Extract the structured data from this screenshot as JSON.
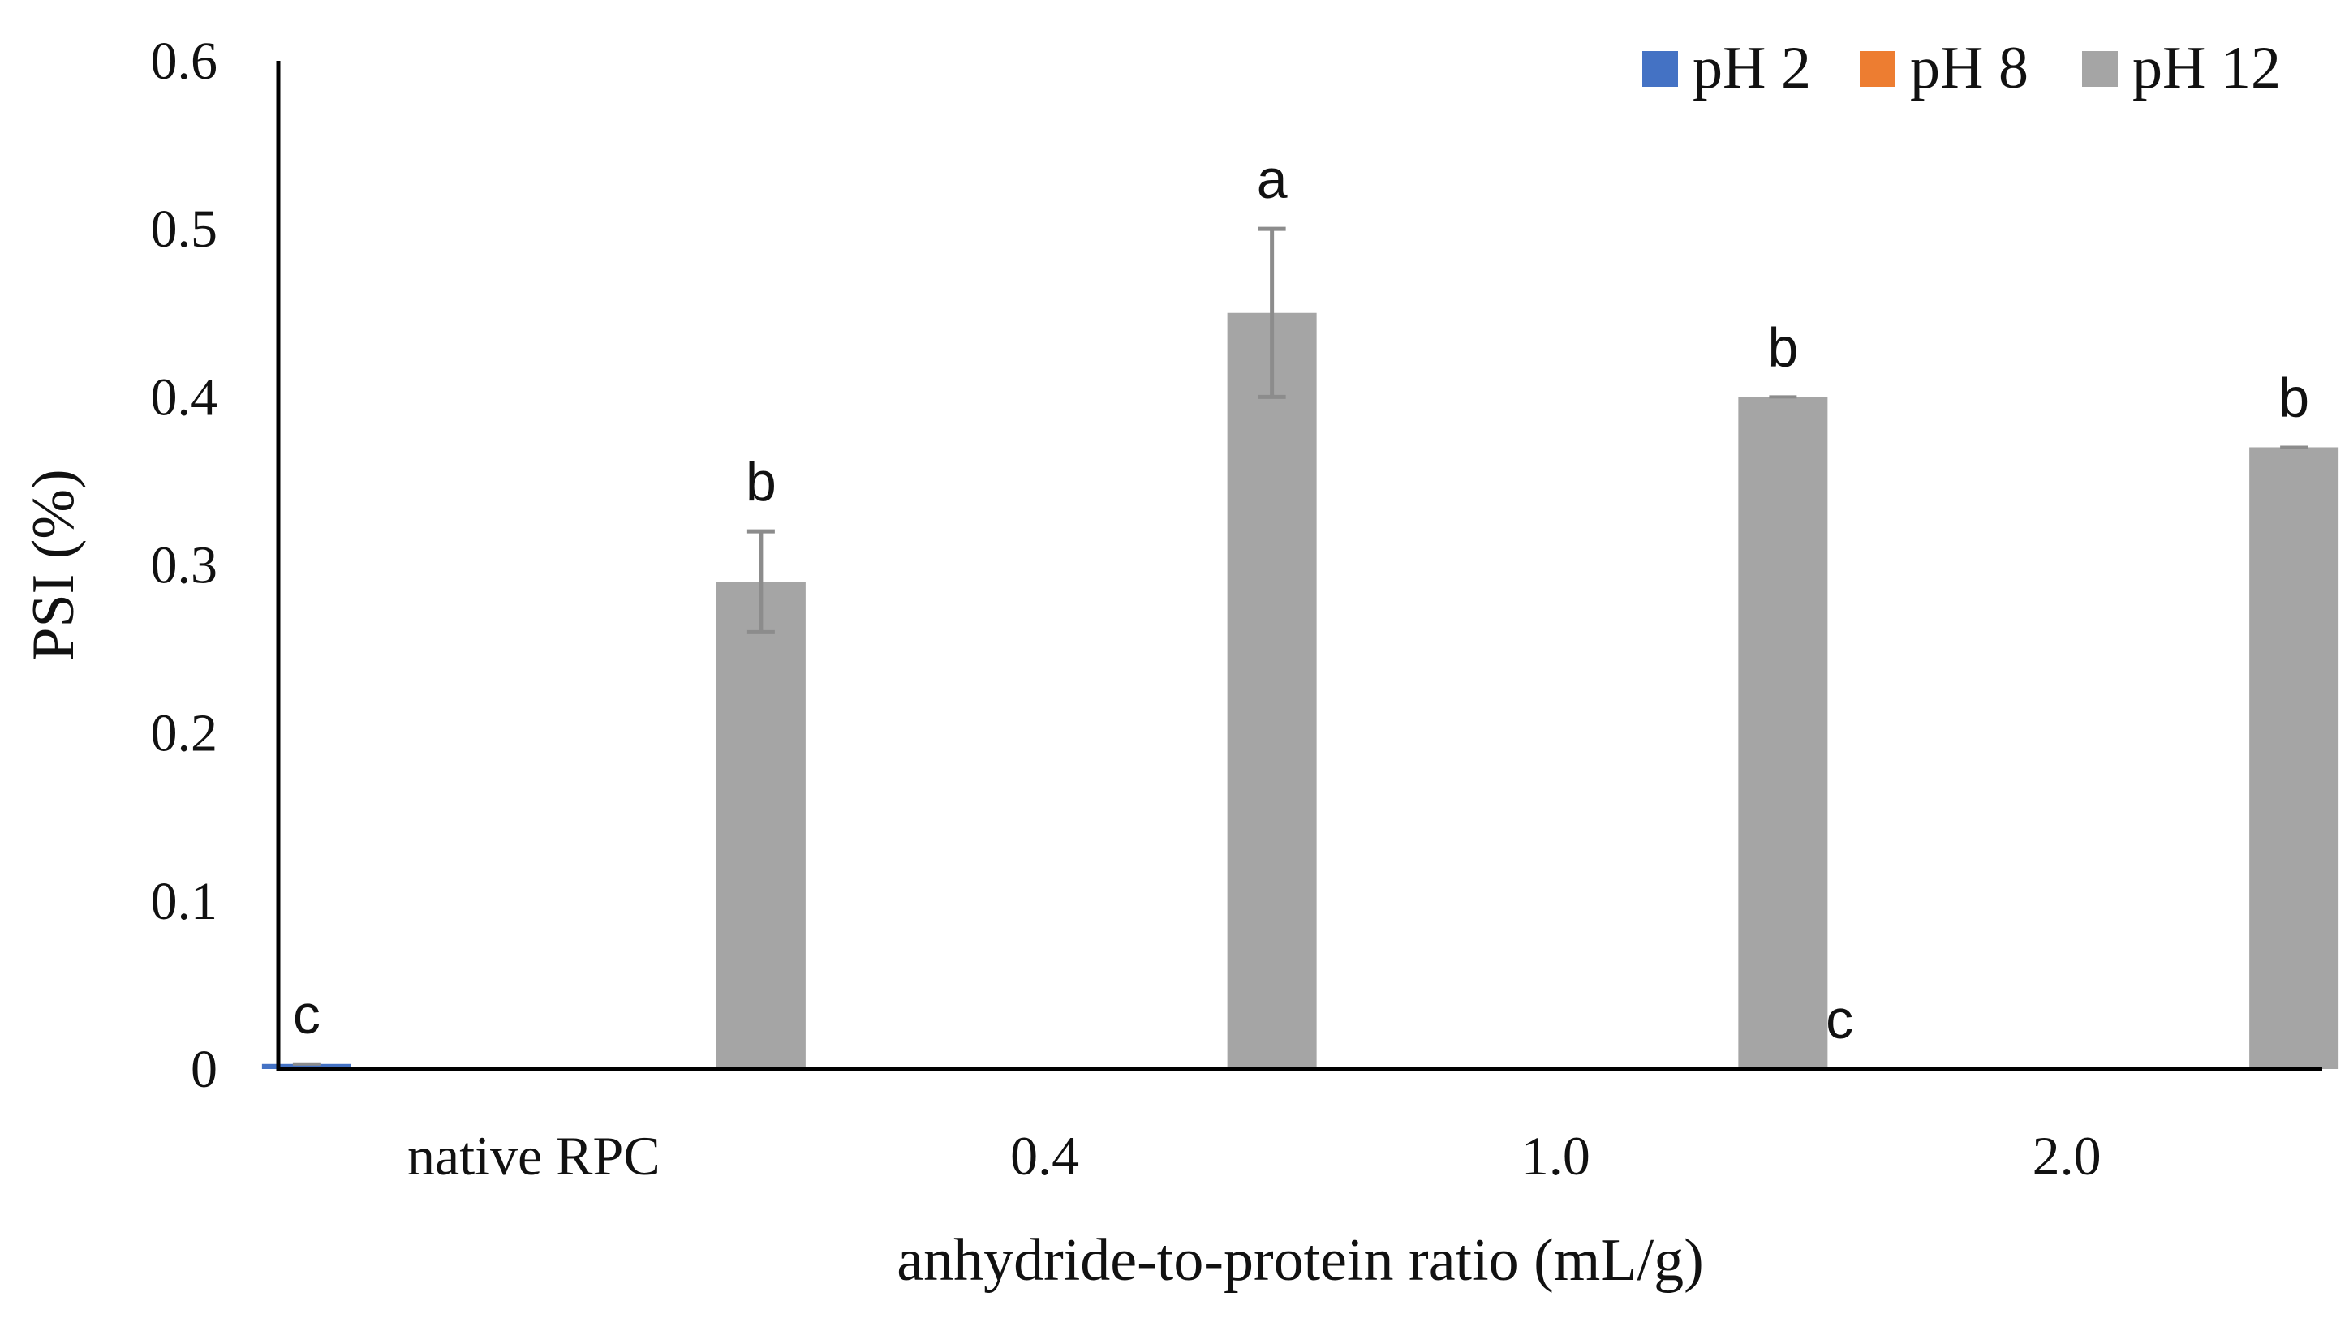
{
  "chart_data": {
    "type": "bar",
    "title": "",
    "xlabel": "anhydride-to-protein ratio (mL/g)",
    "ylabel": "PSI (%)",
    "ylim": [
      0,
      0.6
    ],
    "yticks": [
      0,
      0.1,
      0.2,
      0.3,
      0.4,
      0.5,
      0.6
    ],
    "ytick_labels": [
      "0",
      "0.1",
      "0.2",
      "0.3",
      "0.4",
      "0.5",
      "0.6"
    ],
    "grid": false,
    "legend_position": "top-right",
    "categories": [
      "native RPC",
      "0.4",
      "1.0",
      "2.0"
    ],
    "series": [
      {
        "name": "pH 2",
        "color": "#4472c4",
        "values": [
          0.003,
          null,
          null,
          0
        ],
        "errors": [
          0,
          null,
          null,
          0
        ],
        "labels": [
          "c",
          "",
          "",
          "c"
        ]
      },
      {
        "name": "pH 8",
        "color": "#ed7d31",
        "values": [
          null,
          null,
          null,
          null
        ],
        "errors": [
          null,
          null,
          null,
          null
        ],
        "labels": [
          "",
          "",
          "",
          ""
        ]
      },
      {
        "name": "pH 12",
        "color": "#a5a5a5",
        "values": [
          0.29,
          0.45,
          0.4,
          0.37
        ],
        "errors": [
          0.03,
          0.05,
          0.0,
          0.0
        ],
        "labels": [
          "b",
          "a",
          "b",
          "b"
        ]
      }
    ]
  }
}
